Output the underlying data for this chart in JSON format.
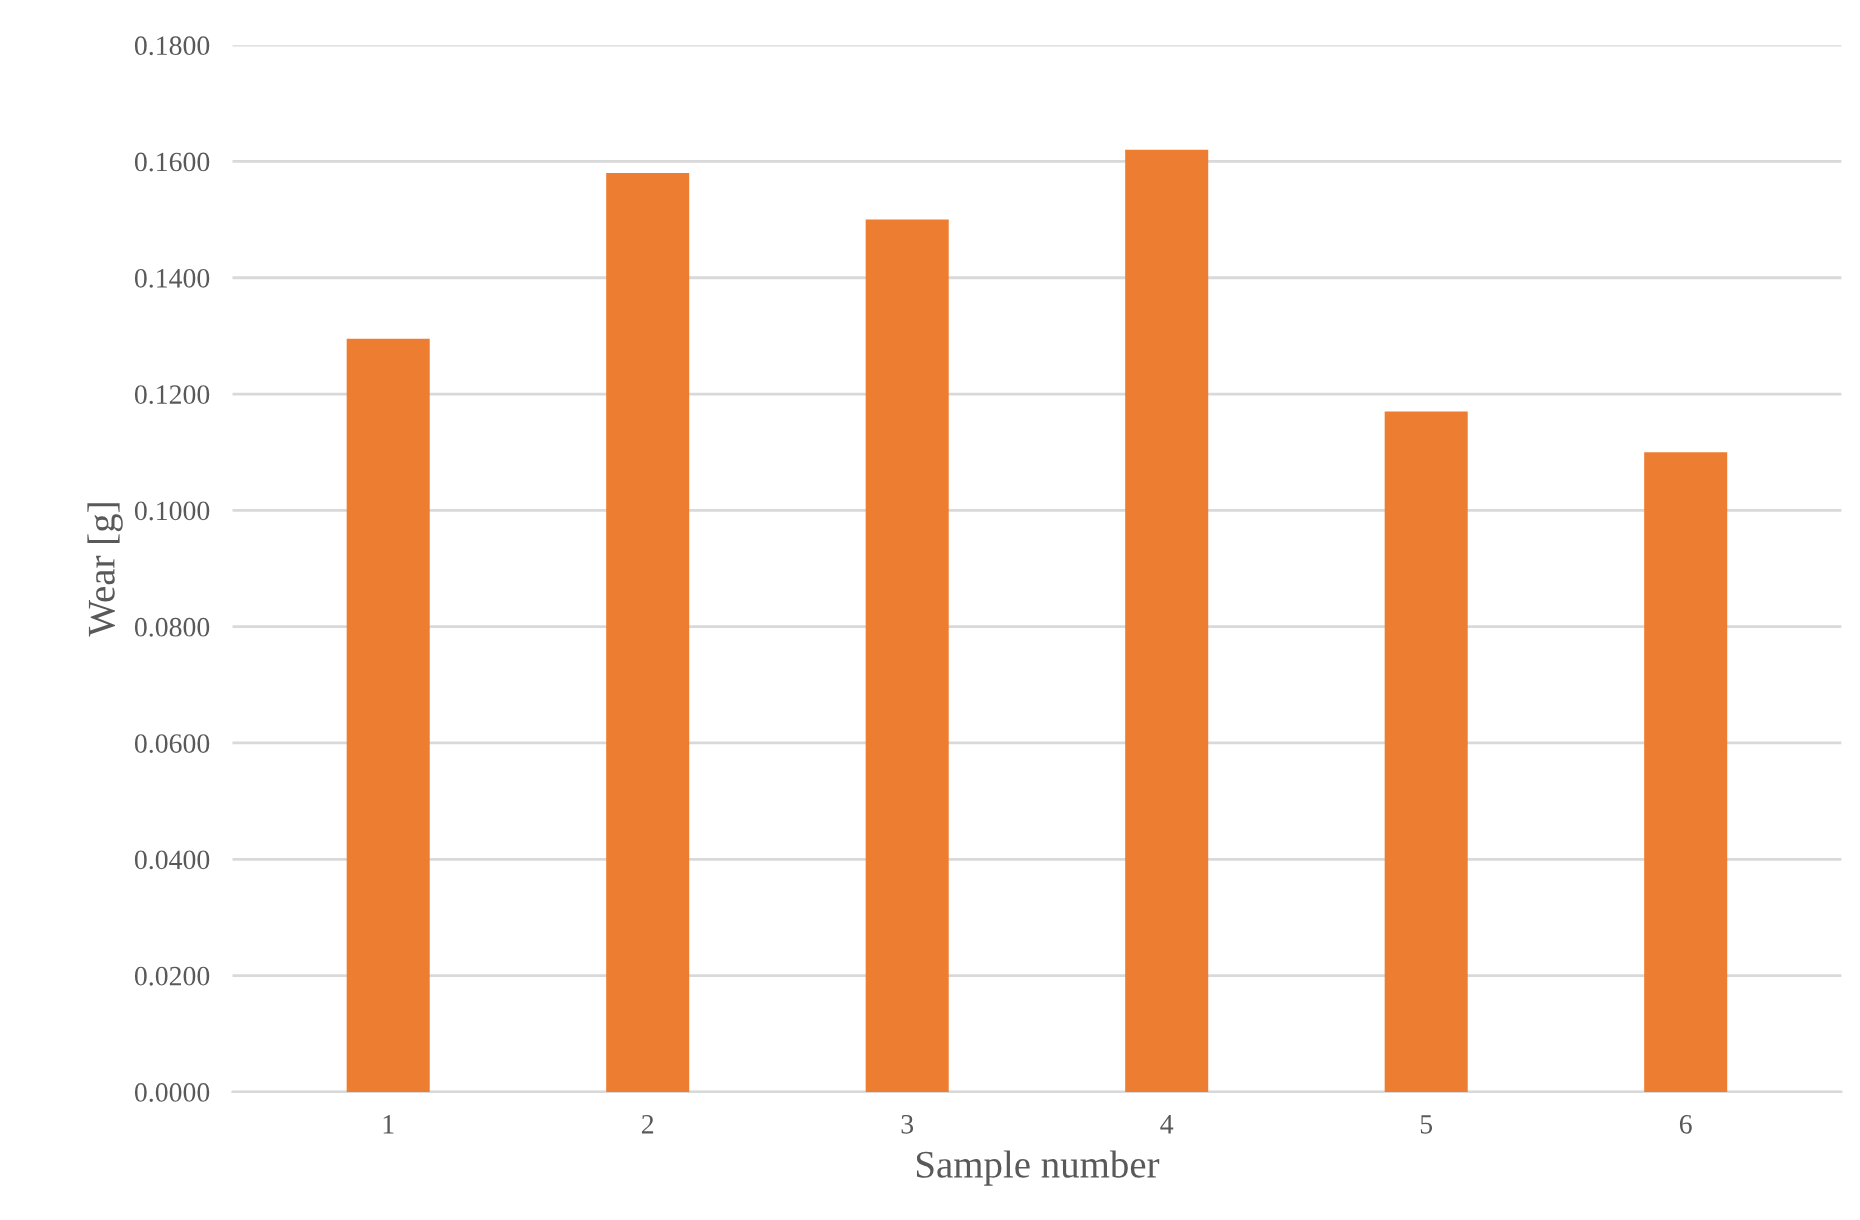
{
  "chart_data": {
    "type": "bar",
    "xlabel": "Sample number",
    "ylabel": "Wear [g]",
    "categories": [
      "1",
      "2",
      "3",
      "4",
      "5",
      "6"
    ],
    "values": [
      0.1295,
      0.158,
      0.15,
      0.162,
      0.117,
      0.11
    ],
    "color": "#ed7d31",
    "ylim": [
      0,
      0.18
    ],
    "yticks": [
      {
        "value": 0,
        "label": "0.0000"
      },
      {
        "value": 0.02,
        "label": "0.0200"
      },
      {
        "value": 0.04,
        "label": "0.0400"
      },
      {
        "value": 0.06,
        "label": "0.0600"
      },
      {
        "value": 0.08,
        "label": "0.0800"
      },
      {
        "value": 0.1,
        "label": "0.1000"
      },
      {
        "value": 0.12,
        "label": "0.1200"
      },
      {
        "value": 0.14,
        "label": "0.1400"
      },
      {
        "value": 0.16,
        "label": "0.1600"
      },
      {
        "value": 0.18,
        "label": "0.1800"
      }
    ],
    "grid": "y"
  }
}
